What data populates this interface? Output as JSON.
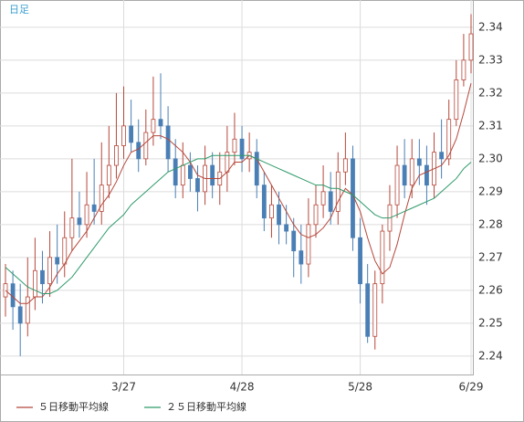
{
  "chart_data": {
    "type": "candlestick",
    "annotation": "日足",
    "categories": [
      null,
      null,
      null,
      null,
      null,
      null,
      null,
      null,
      null,
      null,
      null,
      null,
      null,
      null,
      null,
      null,
      "3/27",
      null,
      null,
      null,
      null,
      null,
      null,
      null,
      null,
      null,
      null,
      null,
      null,
      null,
      null,
      null,
      "4/28",
      null,
      null,
      null,
      null,
      null,
      null,
      null,
      null,
      null,
      null,
      null,
      null,
      null,
      null,
      null,
      "5/28",
      null,
      null,
      null,
      null,
      null,
      null,
      null,
      null,
      null,
      null,
      null,
      null,
      null,
      null,
      "6/29"
    ],
    "open": [
      2.258,
      2.262,
      2.255,
      2.25,
      2.258,
      2.266,
      2.262,
      2.27,
      2.268,
      2.276,
      2.282,
      2.28,
      2.286,
      2.284,
      2.292,
      2.298,
      2.304,
      2.31,
      2.305,
      2.3,
      2.308,
      2.312,
      2.31,
      2.3,
      2.292,
      2.298,
      2.294,
      2.29,
      2.298,
      2.292,
      2.296,
      2.302,
      2.306,
      2.3,
      2.302,
      2.292,
      2.282,
      2.286,
      2.28,
      2.278,
      2.272,
      2.268,
      2.28,
      2.286,
      2.29,
      2.284,
      2.296,
      2.3,
      2.276,
      2.262,
      2.246,
      2.262,
      2.278,
      2.286,
      2.298,
      2.292,
      2.3,
      2.298,
      2.292,
      2.302,
      2.3,
      2.312,
      2.324,
      2.33
    ],
    "high": [
      2.268,
      2.266,
      2.262,
      2.27,
      2.276,
      2.272,
      2.278,
      2.28,
      2.284,
      2.3,
      2.29,
      2.296,
      2.3,
      2.305,
      2.31,
      2.32,
      2.322,
      2.318,
      2.312,
      2.315,
      2.325,
      2.326,
      2.316,
      2.306,
      2.305,
      2.302,
      2.298,
      2.304,
      2.302,
      2.302,
      2.31,
      2.314,
      2.31,
      2.308,
      2.306,
      2.296,
      2.292,
      2.29,
      2.286,
      2.282,
      2.28,
      2.288,
      2.292,
      2.298,
      2.296,
      2.302,
      2.308,
      2.304,
      2.282,
      2.268,
      2.266,
      2.28,
      2.292,
      2.304,
      2.306,
      2.306,
      2.306,
      2.304,
      2.308,
      2.312,
      2.318,
      2.33,
      2.338,
      2.344
    ],
    "low": [
      2.252,
      2.248,
      2.24,
      2.246,
      2.254,
      2.256,
      2.258,
      2.262,
      2.264,
      2.272,
      2.276,
      2.276,
      2.28,
      2.28,
      2.288,
      2.294,
      2.3,
      2.302,
      2.296,
      2.298,
      2.304,
      2.306,
      2.296,
      2.288,
      2.288,
      2.29,
      2.284,
      2.286,
      2.288,
      2.286,
      2.29,
      2.298,
      2.296,
      2.296,
      2.288,
      2.278,
      2.276,
      2.274,
      2.274,
      2.264,
      2.262,
      2.264,
      2.276,
      2.282,
      2.28,
      2.28,
      2.292,
      2.272,
      2.256,
      2.244,
      2.242,
      2.256,
      2.272,
      2.282,
      2.288,
      2.288,
      2.292,
      2.286,
      2.288,
      2.294,
      2.298,
      2.31,
      2.322,
      2.326
    ],
    "close": [
      2.262,
      2.255,
      2.25,
      2.258,
      2.266,
      2.262,
      2.27,
      2.268,
      2.276,
      2.282,
      2.28,
      2.286,
      2.284,
      2.292,
      2.298,
      2.304,
      2.31,
      2.305,
      2.3,
      2.308,
      2.312,
      2.31,
      2.3,
      2.292,
      2.298,
      2.294,
      2.29,
      2.298,
      2.292,
      2.296,
      2.302,
      2.306,
      2.3,
      2.302,
      2.292,
      2.282,
      2.286,
      2.28,
      2.278,
      2.272,
      2.268,
      2.28,
      2.286,
      2.29,
      2.284,
      2.296,
      2.3,
      2.276,
      2.262,
      2.246,
      2.262,
      2.278,
      2.286,
      2.298,
      2.292,
      2.3,
      2.298,
      2.292,
      2.302,
      2.3,
      2.312,
      2.324,
      2.33,
      2.338
    ],
    "up_color": "#b5473a",
    "down_color": "#4a7fb5",
    "series": [
      {
        "name": "５日移動平均線",
        "color": "#b5473a",
        "values": [
          2.26,
          2.258,
          2.256,
          2.256,
          2.258,
          2.258,
          2.261,
          2.265,
          2.268,
          2.272,
          2.275,
          2.278,
          2.282,
          2.286,
          2.289,
          2.293,
          2.298,
          2.302,
          2.303,
          2.305,
          2.307,
          2.307,
          2.306,
          2.304,
          2.302,
          2.299,
          2.295,
          2.294,
          2.294,
          2.294,
          2.296,
          2.299,
          2.299,
          2.301,
          2.3,
          2.296,
          2.292,
          2.288,
          2.284,
          2.28,
          2.277,
          2.276,
          2.277,
          2.279,
          2.282,
          2.287,
          2.291,
          2.289,
          2.284,
          2.276,
          2.269,
          2.265,
          2.267,
          2.274,
          2.283,
          2.291,
          2.295,
          2.296,
          2.297,
          2.298,
          2.301,
          2.306,
          2.314,
          2.323
        ]
      },
      {
        "name": "２５日移動平均線",
        "color": "#2e9a6a",
        "values": [
          2.267,
          2.265,
          2.263,
          2.261,
          2.26,
          2.259,
          2.259,
          2.26,
          2.262,
          2.264,
          2.267,
          2.27,
          2.273,
          2.276,
          2.279,
          2.281,
          2.283,
          2.286,
          2.288,
          2.29,
          2.292,
          2.294,
          2.296,
          2.297,
          2.298,
          2.299,
          2.3,
          2.3,
          2.301,
          2.301,
          2.301,
          2.301,
          2.301,
          2.301,
          2.3,
          2.299,
          2.298,
          2.297,
          2.296,
          2.295,
          2.294,
          2.293,
          2.292,
          2.292,
          2.291,
          2.291,
          2.29,
          2.289,
          2.287,
          2.285,
          2.283,
          2.282,
          2.282,
          2.283,
          2.284,
          2.285,
          2.286,
          2.287,
          2.288,
          2.29,
          2.292,
          2.294,
          2.297,
          2.299
        ]
      }
    ],
    "ylim": [
      2.2344,
      2.3483
    ],
    "yticks": [
      2.24,
      2.25,
      2.26,
      2.27,
      2.28,
      2.29,
      {
        "value": 2.3,
        "label": "2.30"
      },
      2.31,
      2.32,
      2.33,
      2.34
    ],
    "grid": true
  }
}
